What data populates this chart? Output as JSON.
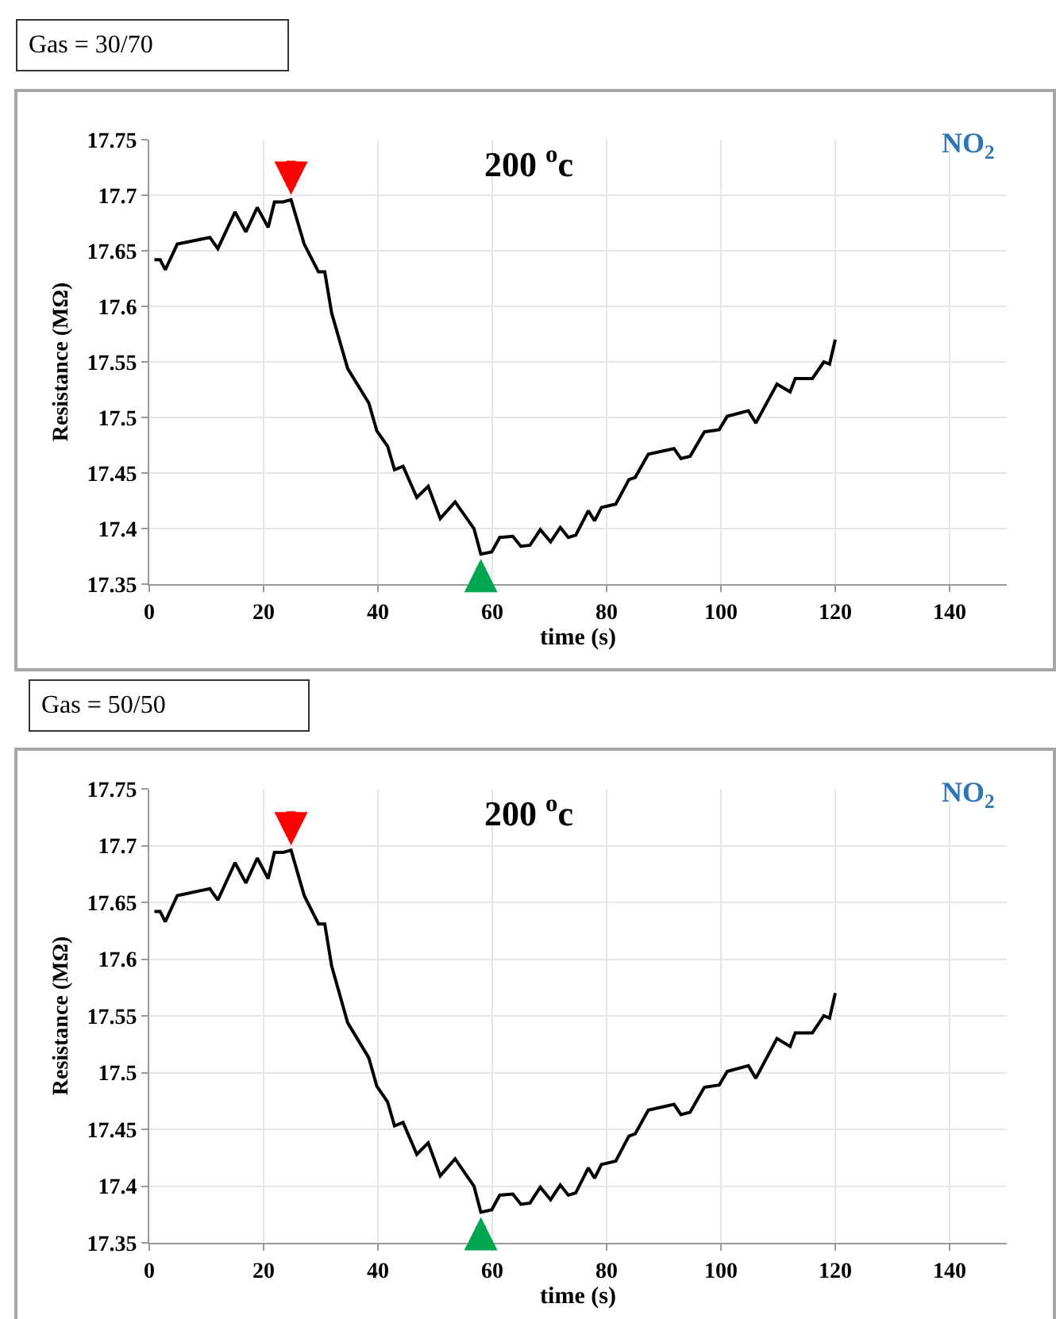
{
  "chart_data": [
    {
      "type": "line",
      "title": "Gas = 30/70",
      "xlabel": "time (s)",
      "ylabel": "Resistance (MΩ)",
      "annotations": [
        "200 $^{o}$c",
        "NO$_{2}$"
      ],
      "x": [
        0.9,
        1.9,
        2.8,
        4.9,
        10.6,
        12,
        15,
        16.9,
        18.9,
        20.8,
        21.9,
        23.4,
        24.8,
        27.1,
        29.6,
        30.7,
        31.9,
        34.7,
        38.4,
        39.8,
        41.7,
        42.9,
        44.4,
        46.8,
        48.8,
        50.9,
        53.5,
        56.8,
        58,
        59.9,
        61.3,
        63.6,
        65,
        66.6,
        68.4,
        70.2,
        71.9,
        73.3,
        74.6,
        76.8,
        77.9,
        79.1,
        81.6,
        83.9,
        85,
        87.3,
        91.8,
        93,
        94.6,
        97.1,
        99.7,
        101.1,
        104.8,
        106.1,
        109.8,
        112.1,
        113,
        116,
        118,
        119,
        120
      ],
      "series": [
        {
          "color": "#000000",
          "values": [
            17.642,
            17.642,
            17.633,
            17.656,
            17.662,
            17.652,
            17.685,
            17.667,
            17.689,
            17.671,
            17.694,
            17.694,
            17.696,
            17.656,
            17.631,
            17.631,
            17.594,
            17.544,
            17.513,
            17.488,
            17.474,
            17.453,
            17.456,
            17.428,
            17.438,
            17.409,
            17.424,
            17.4,
            17.377,
            17.379,
            17.392,
            17.393,
            17.384,
            17.385,
            17.399,
            17.388,
            17.401,
            17.392,
            17.394,
            17.416,
            17.407,
            17.419,
            17.422,
            17.444,
            17.446,
            17.467,
            17.472,
            17.463,
            17.465,
            17.487,
            17.489,
            17.501,
            17.506,
            17.495,
            17.53,
            17.523,
            17.535,
            17.535,
            17.55,
            17.548,
            17.57
          ]
        }
      ],
      "xlim": [
        0,
        150
      ],
      "xticks": [
        0,
        20,
        40,
        60,
        80,
        100,
        120,
        140
      ],
      "ylim": [
        17.35,
        17.75
      ],
      "yticks": [
        17.35,
        17.4,
        17.45,
        17.5,
        17.55,
        17.6,
        17.65,
        17.7,
        17.75
      ],
      "grid": true,
      "marker": "none",
      "line_style": "solid"
    },
    {
      "type": "line",
      "title": "Gas = 50/50",
      "xlabel": "time (s)",
      "ylabel": "Resistance (MΩ)",
      "annotations": [
        "200 $^{o}$c",
        "NO$_{2}$"
      ],
      "x": [
        0.9,
        1.9,
        2.8,
        4.9,
        10.6,
        12,
        15,
        16.9,
        18.9,
        20.8,
        21.9,
        23.4,
        24.8,
        27.1,
        29.6,
        30.7,
        31.9,
        34.7,
        38.4,
        39.8,
        41.7,
        42.9,
        44.4,
        46.8,
        48.8,
        50.9,
        53.5,
        56.8,
        58,
        59.9,
        61.3,
        63.6,
        65,
        66.6,
        68.4,
        70.2,
        71.9,
        73.3,
        74.6,
        76.8,
        77.9,
        79.1,
        81.6,
        83.9,
        85,
        87.3,
        91.8,
        93,
        94.6,
        97.1,
        99.7,
        101.1,
        104.8,
        106.1,
        109.8,
        112.1,
        113,
        116,
        118,
        119,
        120
      ],
      "series": [
        {
          "color": "#000000",
          "values": [
            17.642,
            17.642,
            17.633,
            17.656,
            17.662,
            17.652,
            17.685,
            17.667,
            17.689,
            17.671,
            17.694,
            17.694,
            17.696,
            17.656,
            17.631,
            17.631,
            17.594,
            17.544,
            17.513,
            17.488,
            17.474,
            17.453,
            17.456,
            17.428,
            17.438,
            17.409,
            17.424,
            17.4,
            17.377,
            17.379,
            17.392,
            17.393,
            17.384,
            17.385,
            17.399,
            17.388,
            17.401,
            17.392,
            17.394,
            17.416,
            17.407,
            17.419,
            17.422,
            17.444,
            17.446,
            17.467,
            17.472,
            17.463,
            17.465,
            17.487,
            17.489,
            17.501,
            17.506,
            17.495,
            17.53,
            17.523,
            17.535,
            17.535,
            17.55,
            17.548,
            17.57
          ]
        }
      ],
      "xlim": [
        0,
        150
      ],
      "xticks": [
        0,
        20,
        40,
        60,
        80,
        100,
        120,
        140
      ],
      "ylim": [
        17.35,
        17.75
      ],
      "yticks": [
        17.35,
        17.4,
        17.45,
        17.5,
        17.55,
        17.6,
        17.65,
        17.7,
        17.75
      ],
      "grid": true,
      "marker": "none",
      "line_style": "solid"
    }
  ]
}
